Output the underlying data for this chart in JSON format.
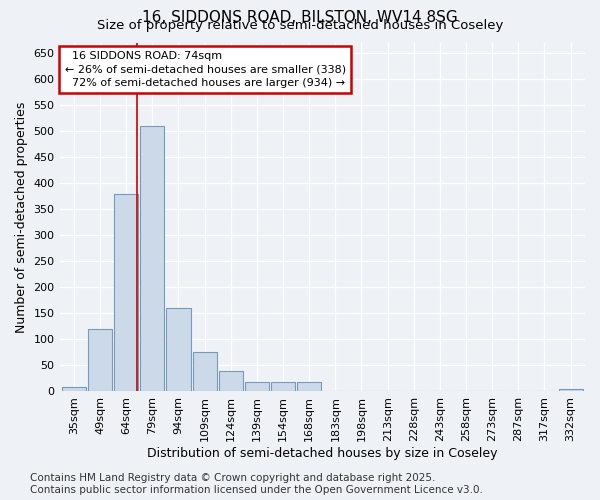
{
  "title_line1": "16, SIDDONS ROAD, BILSTON, WV14 8SG",
  "title_line2": "Size of property relative to semi-detached houses in Coseley",
  "xlabel": "Distribution of semi-detached houses by size in Coseley",
  "ylabel": "Number of semi-detached properties",
  "bar_color": "#ccd9e8",
  "bar_edge_color": "#7799bb",
  "categories": [
    "35sqm",
    "49sqm",
    "64sqm",
    "79sqm",
    "94sqm",
    "109sqm",
    "124sqm",
    "139sqm",
    "154sqm",
    "168sqm",
    "183sqm",
    "198sqm",
    "213sqm",
    "228sqm",
    "243sqm",
    "258sqm",
    "273sqm",
    "287sqm",
    "317sqm",
    "332sqm"
  ],
  "values": [
    8,
    120,
    380,
    510,
    160,
    75,
    40,
    18,
    18,
    18,
    0,
    0,
    0,
    0,
    0,
    0,
    0,
    0,
    0,
    5
  ],
  "ylim": [
    0,
    670
  ],
  "yticks": [
    0,
    50,
    100,
    150,
    200,
    250,
    300,
    350,
    400,
    450,
    500,
    550,
    600,
    650
  ],
  "property_label": "16 SIDDONS ROAD: 74sqm",
  "smaller_pct": "26%",
  "smaller_count": 338,
  "larger_pct": "72%",
  "larger_count": 934,
  "annotation_box_color": "#ffffff",
  "annotation_box_edge": "#cc0000",
  "red_line_color": "#cc0000",
  "red_line_x": 2.42,
  "footer_line1": "Contains HM Land Registry data © Crown copyright and database right 2025.",
  "footer_line2": "Contains public sector information licensed under the Open Government Licence v3.0.",
  "background_color": "#eef2f7",
  "plot_bg_color": "#eef2f7",
  "grid_color": "#ffffff",
  "title_fontsize": 11,
  "subtitle_fontsize": 9.5,
  "axis_label_fontsize": 9,
  "tick_fontsize": 8,
  "footer_fontsize": 7.5,
  "annotation_fontsize": 8
}
